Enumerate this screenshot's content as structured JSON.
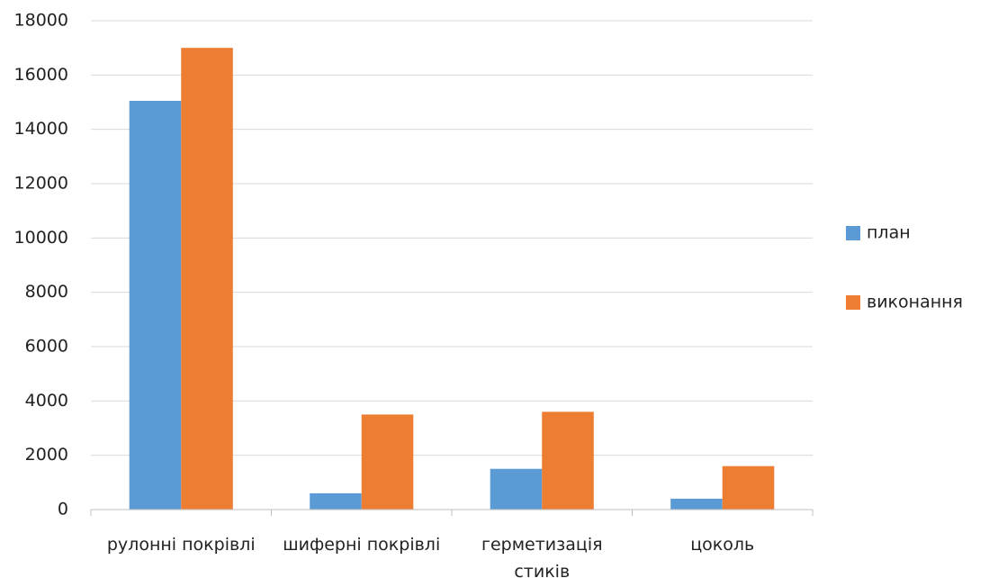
{
  "chart_data": {
    "type": "bar",
    "categories": [
      "рулонні покрівлі",
      "шиферні покрівлі",
      "герметизація стиків",
      "цоколь"
    ],
    "series": [
      {
        "name": "план",
        "color": "#5b9bd5",
        "values": [
          15050,
          600,
          1500,
          400
        ]
      },
      {
        "name": "виконання",
        "color": "#ed7d31",
        "values": [
          17000,
          3500,
          3600,
          1600
        ]
      }
    ],
    "ylim": [
      0,
      18000
    ],
    "yticks": [
      0,
      2000,
      4000,
      6000,
      8000,
      10000,
      12000,
      14000,
      16000,
      18000
    ],
    "grid": true,
    "legend": "right"
  }
}
